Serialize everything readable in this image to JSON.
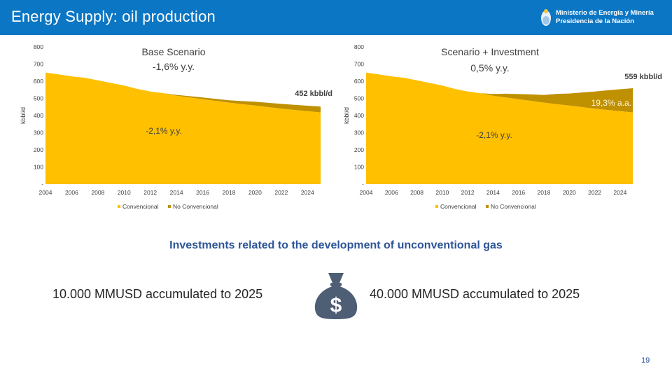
{
  "header": {
    "title": "Energy Supply: oil production",
    "ministry_line1": "Ministerio de Energía y Minería",
    "ministry_line2": "Presidencia de la Nación"
  },
  "colors": {
    "header_bg": "#0b76c4",
    "convencional": "#ffc000",
    "no_convencional": "#bf9000",
    "subtitle": "#2e5597",
    "bag": "#4d5e75"
  },
  "chart_data": [
    {
      "type": "area",
      "title": "Base Scenario",
      "growth_label": "-1,6% y.y.",
      "ylabel": "kbbl/d",
      "ylim": [
        0,
        800
      ],
      "y_ticks": [
        "-",
        "100",
        "200",
        "300",
        "400",
        "500",
        "600",
        "700",
        "800"
      ],
      "x_ticks": [
        "2004",
        "2006",
        "2008",
        "2010",
        "2012",
        "2014",
        "2016",
        "2018",
        "2020",
        "2022",
        "2024"
      ],
      "x": [
        2004,
        2005,
        2006,
        2007,
        2008,
        2009,
        2010,
        2011,
        2012,
        2013,
        2014,
        2015,
        2016,
        2017,
        2018,
        2019,
        2020,
        2021,
        2022,
        2023,
        2024,
        2025
      ],
      "series": [
        {
          "name": "Convencional",
          "values": [
            650,
            640,
            628,
            620,
            605,
            590,
            575,
            555,
            540,
            530,
            515,
            505,
            495,
            485,
            475,
            466,
            458,
            449,
            440,
            432,
            425,
            418
          ]
        },
        {
          "name": "No Convencional",
          "values": [
            0,
            0,
            0,
            0,
            0,
            0,
            0,
            0,
            0,
            0,
            5,
            8,
            10,
            12,
            14,
            18,
            22,
            25,
            28,
            30,
            32,
            34
          ]
        }
      ],
      "annotations": [
        {
          "text": "452 kbbl/d",
          "x": 2025,
          "y": 452
        },
        {
          "text": "-2,1% y.y.",
          "x": 2014,
          "y": 305
        }
      ],
      "legend": "bottom"
    },
    {
      "type": "area",
      "title": "Scenario + Investment",
      "growth_label": "0,5% y.y.",
      "ylabel": "kbbl/d",
      "ylim": [
        0,
        800
      ],
      "y_ticks": [
        "-",
        "100",
        "200",
        "300",
        "400",
        "500",
        "600",
        "700",
        "800"
      ],
      "x_ticks": [
        "2004",
        "2006",
        "2008",
        "2010",
        "2012",
        "2014",
        "2016",
        "2018",
        "2020",
        "2022",
        "2024"
      ],
      "x": [
        2004,
        2005,
        2006,
        2007,
        2008,
        2009,
        2010,
        2011,
        2012,
        2013,
        2014,
        2015,
        2016,
        2017,
        2018,
        2019,
        2020,
        2021,
        2022,
        2023,
        2024,
        2025
      ],
      "series": [
        {
          "name": "Convencional",
          "values": [
            650,
            640,
            628,
            620,
            605,
            590,
            575,
            555,
            540,
            530,
            515,
            505,
            495,
            485,
            475,
            466,
            458,
            449,
            440,
            432,
            425,
            418
          ]
        },
        {
          "name": "No Convencional",
          "values": [
            0,
            0,
            0,
            0,
            0,
            0,
            0,
            0,
            0,
            0,
            10,
            22,
            30,
            38,
            45,
            60,
            70,
            85,
            100,
            115,
            128,
            141
          ]
        }
      ],
      "annotations": [
        {
          "text": "559 kbbl/d",
          "x": 2025,
          "y": 640
        },
        {
          "text": "19,3% a.a.",
          "x": 2023,
          "y": 480
        },
        {
          "text": "-2,1% y.y.",
          "x": 2015,
          "y": 300
        }
      ],
      "legend": "bottom"
    }
  ],
  "section_title": "Investments related to the development of unconventional gas",
  "investment_left": "10.000 MMUSD accumulated to 2025",
  "investment_right": "40.000 MMUSD accumulated to 2025",
  "bag_symbol": "$",
  "page_number": "19"
}
